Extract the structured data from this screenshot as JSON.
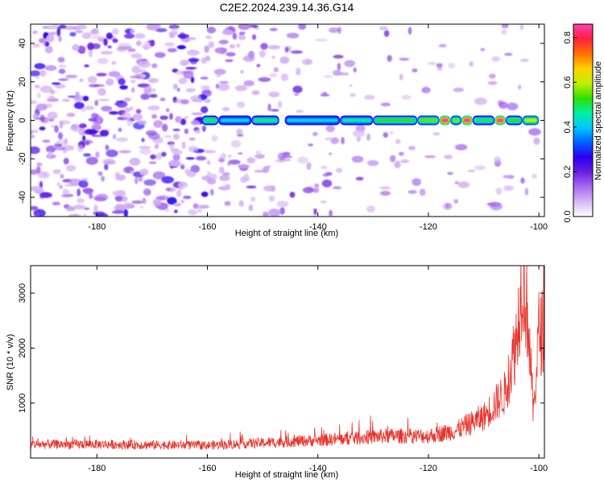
{
  "chart_data": [
    {
      "type": "heatmap",
      "title": "C2E2.2024.239.14.36.G14",
      "xlabel": "Height of straight line (km)",
      "ylabel": "Frequency (Hz)",
      "xlim": [
        -192,
        -99
      ],
      "ylim": [
        -50,
        50
      ],
      "x_ticks": [
        -180,
        -160,
        -140,
        -120,
        -100
      ],
      "y_ticks": [
        -40,
        -20,
        0,
        20,
        40
      ],
      "colorbar": {
        "label": "Normalized spectral amplitude",
        "range": [
          0,
          0.86
        ],
        "ticks": [
          0.0,
          0.2,
          0.4,
          0.6,
          0.8
        ],
        "colors": [
          "#ffffff",
          "#d9b8f5",
          "#a86af0",
          "#6a1fe0",
          "#2a00f0",
          "#0060ff",
          "#00c8ff",
          "#00f0a0",
          "#30e000",
          "#c0f000",
          "#ffd000",
          "#ff7000",
          "#ff2040",
          "#ff40b0"
        ]
      },
      "signal_line": {
        "frequency": 0,
        "x_start": -161,
        "x_end": -100,
        "segments": [
          {
            "x": [
              -161,
              -158
            ],
            "amplitude": 0.5
          },
          {
            "x": [
              -158,
              -152
            ],
            "amplitude": 0.42
          },
          {
            "x": [
              -152,
              -147
            ],
            "amplitude": 0.48
          },
          {
            "x": [
              -146,
              -136
            ],
            "amplitude": 0.42
          },
          {
            "x": [
              -136,
              -130
            ],
            "amplitude": 0.46
          },
          {
            "x": [
              -130,
              -122
            ],
            "amplitude": 0.52
          },
          {
            "x": [
              -122,
              -118
            ],
            "amplitude": 0.55
          },
          {
            "x": [
              -118,
              -116
            ],
            "amplitude": 0.86
          },
          {
            "x": [
              -116,
              -114
            ],
            "amplitude": 0.56
          },
          {
            "x": [
              -114,
              -112
            ],
            "amplitude": 0.86
          },
          {
            "x": [
              -112,
              -108
            ],
            "amplitude": 0.5
          },
          {
            "x": [
              -108,
              -106
            ],
            "amplitude": 0.86
          },
          {
            "x": [
              -106,
              -103
            ],
            "amplitude": 0.52
          },
          {
            "x": [
              -103,
              -100
            ],
            "amplitude": 0.6
          }
        ]
      },
      "noise_density": [
        {
          "x": [
            -192,
            -160
          ],
          "level": 0.9
        },
        {
          "x": [
            -160,
            -135
          ],
          "level": 0.45
        },
        {
          "x": [
            -135,
            -100
          ],
          "level": 0.18
        }
      ]
    },
    {
      "type": "line",
      "xlabel": "Height of straight line (km)",
      "ylabel": "SNR (10 * v/v)",
      "xlim": [
        -192,
        -99
      ],
      "ylim": [
        0,
        3500
      ],
      "x_ticks": [
        -180,
        -160,
        -140,
        -120,
        -100
      ],
      "y_ticks": [
        1000,
        2000,
        3000
      ],
      "color": "#e8322a",
      "envelope": [
        {
          "x": -192,
          "y": 250
        },
        {
          "x": -180,
          "y": 250
        },
        {
          "x": -160,
          "y": 230
        },
        {
          "x": -145,
          "y": 300
        },
        {
          "x": -135,
          "y": 350
        },
        {
          "x": -128,
          "y": 400
        },
        {
          "x": -120,
          "y": 400
        },
        {
          "x": -115,
          "y": 500
        },
        {
          "x": -110,
          "y": 750
        },
        {
          "x": -106,
          "y": 1200
        },
        {
          "x": -104,
          "y": 2200
        },
        {
          "x": -103,
          "y": 3400
        },
        {
          "x": -102,
          "y": 2600
        },
        {
          "x": -101,
          "y": 800
        },
        {
          "x": -100,
          "y": 2300
        }
      ]
    }
  ]
}
